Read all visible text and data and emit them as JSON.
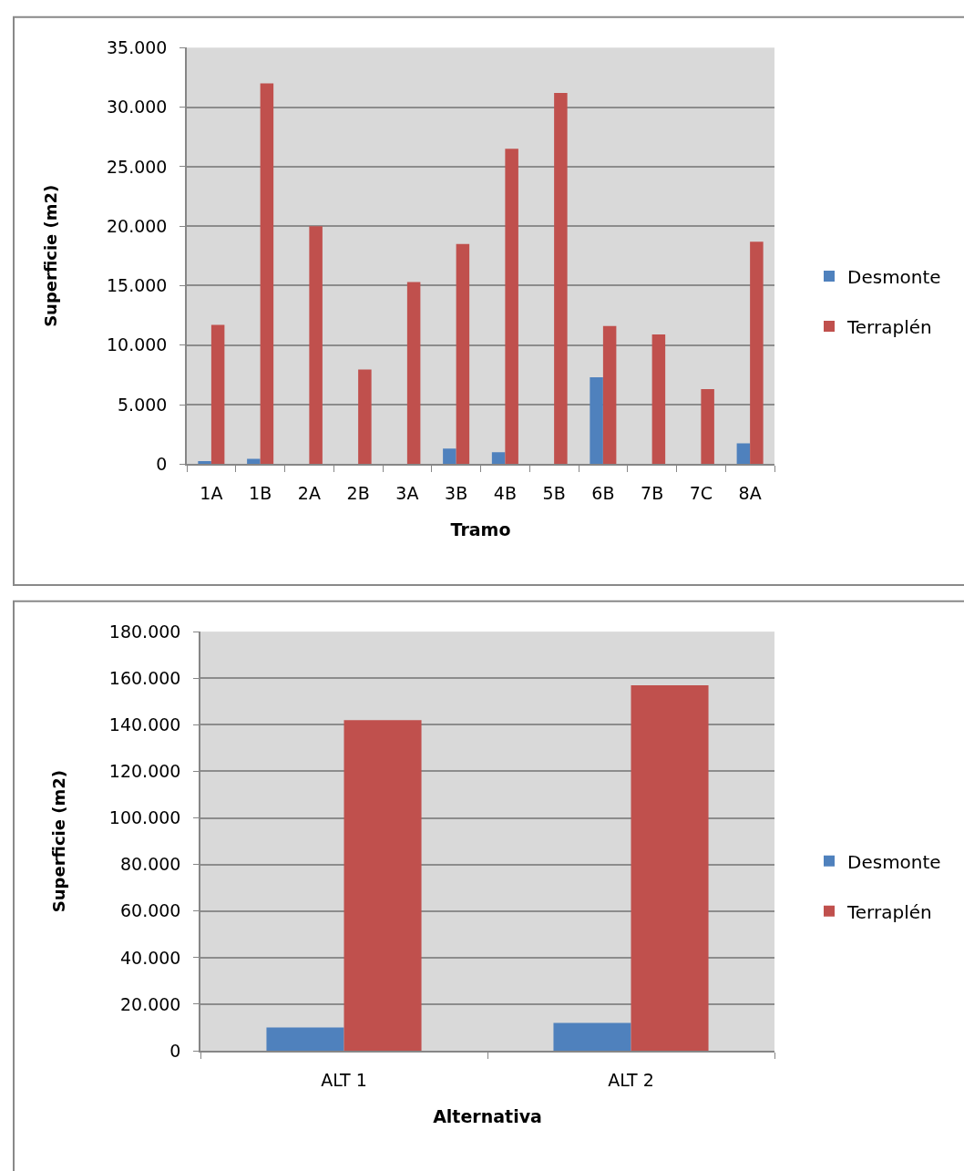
{
  "chart_data": [
    {
      "type": "bar",
      "xlabel": "Tramo",
      "ylabel": "Superficie (m2)",
      "categories": [
        "1A",
        "1B",
        "2A",
        "2B",
        "3A",
        "3B",
        "4B",
        "5B",
        "6B",
        "7B",
        "7C",
        "8A"
      ],
      "series": [
        {
          "name": "Desmonte",
          "color": "#4f81bd",
          "values": [
            250,
            450,
            0,
            0,
            0,
            1300,
            1000,
            0,
            7300,
            0,
            0,
            1750
          ]
        },
        {
          "name": "Terraplén",
          "color": "#c0504d",
          "values": [
            11700,
            32000,
            20000,
            7950,
            15300,
            18500,
            26500,
            31200,
            11600,
            10900,
            6300,
            18700
          ]
        }
      ],
      "ylim": [
        0,
        35000
      ],
      "yticks": [
        0,
        {
          "value": 5000,
          "label": "5.000"
        },
        {
          "value": 10000,
          "label": "10.000"
        },
        {
          "value": 15000,
          "label": "15.000"
        },
        {
          "value": 20000,
          "label": "20.000"
        },
        {
          "value": 25000,
          "label": "25.000"
        },
        {
          "value": 30000,
          "label": "30.000"
        },
        {
          "value": 35000,
          "label": "35.000"
        }
      ],
      "grid": "y",
      "legend": "right"
    },
    {
      "type": "bar",
      "xlabel": "Alternativa",
      "ylabel": "Superficie (m2)",
      "categories": [
        "ALT 1",
        "ALT 2"
      ],
      "series": [
        {
          "name": "Desmonte",
          "color": "#4f81bd",
          "values": [
            10000,
            12000
          ]
        },
        {
          "name": "Terraplén",
          "color": "#c0504d",
          "values": [
            142000,
            157000
          ]
        }
      ],
      "ylim": [
        0,
        180000
      ],
      "yticks": [
        0,
        {
          "value": 20000,
          "label": "20.000"
        },
        {
          "value": 40000,
          "label": "40.000"
        },
        {
          "value": 60000,
          "label": "60.000"
        },
        {
          "value": 80000,
          "label": "80.000"
        },
        {
          "value": 100000,
          "label": "100.000"
        },
        {
          "value": 120000,
          "label": "120.000"
        },
        {
          "value": 140000,
          "label": "140.000"
        },
        {
          "value": 160000,
          "label": "160.000"
        },
        {
          "value": 180000,
          "label": "180.000"
        }
      ],
      "grid": "y",
      "legend": "right"
    }
  ]
}
